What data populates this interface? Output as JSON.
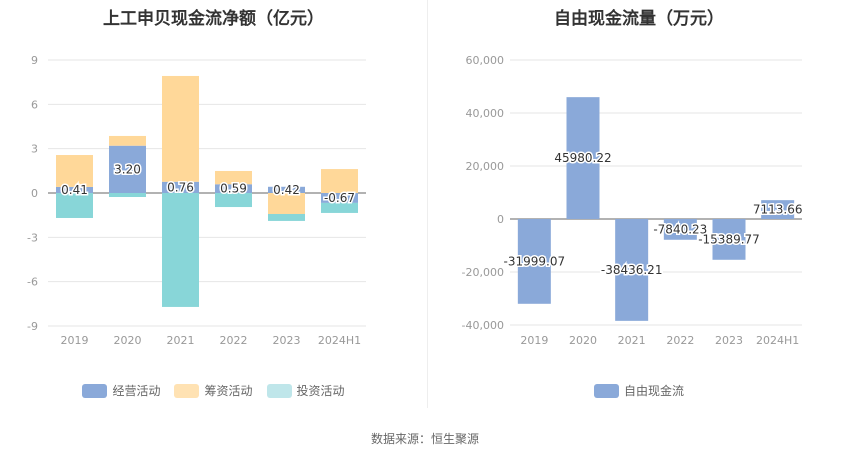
{
  "left_chart": {
    "title": "上工申贝现金流净额（亿元）",
    "legend": [
      {
        "label": "经营活动",
        "color": "#8aa9d9"
      },
      {
        "label": "筹资活动",
        "color": "#ffe2b3"
      },
      {
        "label": "投资活动",
        "color": "#bfe6ea"
      }
    ]
  },
  "right_chart": {
    "title": "自由现金流量（万元）",
    "legend": [
      {
        "label": "自由现金流",
        "color": "#8aa9d9"
      }
    ]
  },
  "footer": {
    "source": "数据来源：恒生聚源"
  },
  "chart_data": [
    {
      "type": "bar",
      "stacked": true,
      "title": "上工申贝现金流净额（亿元）",
      "xlabel": "",
      "ylabel": "",
      "categories": [
        "2019",
        "2020",
        "2021",
        "2022",
        "2023",
        "2024H1"
      ],
      "ylim": [
        -9,
        9
      ],
      "yticks": [
        -9,
        -6,
        -3,
        0,
        3,
        6,
        9
      ],
      "grid": true,
      "legend_position": "bottom",
      "series": [
        {
          "name": "经营活动",
          "color": "#8aa9d9",
          "values": [
            0.41,
            3.2,
            0.76,
            0.59,
            0.42,
            -0.67
          ],
          "labels_shown": true
        },
        {
          "name": "筹资活动",
          "color": "#ffd899",
          "values": [
            2.16,
            0.66,
            7.16,
            0.9,
            -1.42,
            1.62
          ]
        },
        {
          "name": "投资活动",
          "color": "#88d6d8",
          "values": [
            -1.69,
            -0.27,
            -7.71,
            -0.95,
            -0.47,
            -0.68
          ]
        }
      ]
    },
    {
      "type": "bar",
      "title": "自由现金流量（万元）",
      "xlabel": "",
      "ylabel": "",
      "categories": [
        "2019",
        "2020",
        "2021",
        "2022",
        "2023",
        "2024H1"
      ],
      "ylim": [
        -40000,
        60000
      ],
      "yticks": [
        -40000,
        -20000,
        0,
        20000,
        40000,
        60000
      ],
      "ytick_labels": [
        "-40,000",
        "-20,000",
        "0",
        "20,000",
        "40,000",
        "60,000"
      ],
      "grid": true,
      "legend_position": "bottom",
      "series": [
        {
          "name": "自由现金流",
          "color": "#8aa9d9",
          "values": [
            -31999.07,
            45980.22,
            -38436.21,
            -7840.23,
            -15389.77,
            7113.66
          ]
        }
      ]
    }
  ]
}
